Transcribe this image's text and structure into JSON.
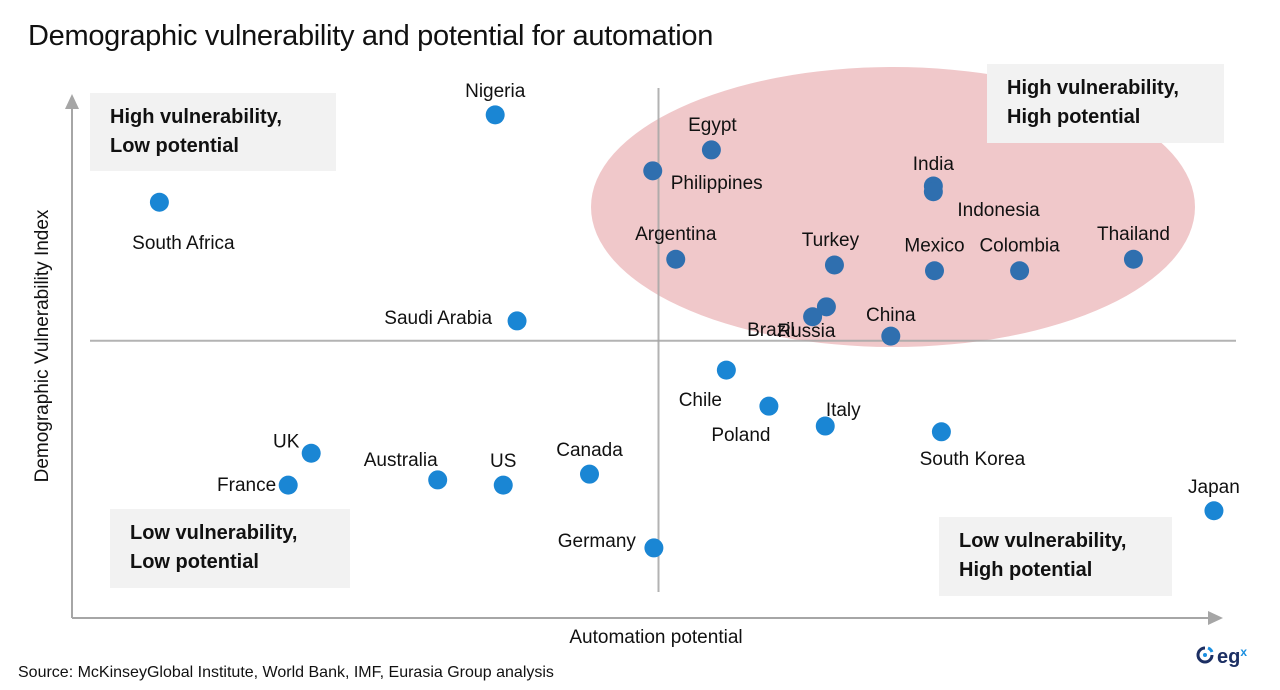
{
  "title": "Demographic vulnerability and potential for automation",
  "source": "Source: McKinseyGlobal Institute, World Bank, IMF, Eurasia Group analysis",
  "logo": {
    "text": "eg",
    "superscript": "x"
  },
  "colors": {
    "point_default": "#1a86d4",
    "point_highlight": "#2f6faf",
    "ellipse_fill": "#f0c8ca",
    "axis": "#a6a6a6",
    "quadrant_box": "#f2f2f2"
  },
  "quadrants": {
    "top_left": {
      "line1": "High vulnerability,",
      "line2": "Low potential"
    },
    "top_right": {
      "line1": "High vulnerability,",
      "line2": "High potential"
    },
    "bottom_left": {
      "line1": "Low vulnerability,",
      "line2": "Low potential"
    },
    "bottom_right": {
      "line1": "Low vulnerability,",
      "line2": "High potential"
    }
  },
  "chart_data": {
    "type": "scatter",
    "title": "Demographic vulnerability and potential for automation",
    "xlabel": "Automation potential",
    "ylabel": "Demographic Vulnerability Index",
    "xlim": [
      0,
      100
    ],
    "ylim": [
      0,
      100
    ],
    "x_ticks": [],
    "y_ticks": [],
    "grid": false,
    "x_divider": 51,
    "y_divider": 53,
    "highlight_region": "High vulnerability, High potential",
    "points": [
      {
        "name": "Nigeria",
        "x": 36.8,
        "y": 96.2,
        "highlight": false
      },
      {
        "name": "South Africa",
        "x": 7.6,
        "y": 79.5,
        "highlight": false
      },
      {
        "name": "Saudi Arabia",
        "x": 38.7,
        "y": 56.8,
        "highlight": false
      },
      {
        "name": "Egypt",
        "x": 55.6,
        "y": 89.5,
        "highlight": true
      },
      {
        "name": "Philippines",
        "x": 50.5,
        "y": 85.5,
        "highlight": true
      },
      {
        "name": "India",
        "x": 74.9,
        "y": 82.6,
        "highlight": true
      },
      {
        "name": "Indonesia",
        "x": 74.9,
        "y": 81.5,
        "highlight": true
      },
      {
        "name": "Argentina",
        "x": 52.5,
        "y": 68.6,
        "highlight": true
      },
      {
        "name": "Turkey",
        "x": 66.3,
        "y": 67.5,
        "highlight": true
      },
      {
        "name": "Mexico",
        "x": 75.0,
        "y": 66.4,
        "highlight": true
      },
      {
        "name": "Colombia",
        "x": 82.4,
        "y": 66.4,
        "highlight": true
      },
      {
        "name": "Thailand",
        "x": 92.3,
        "y": 68.6,
        "highlight": true
      },
      {
        "name": "Russia",
        "x": 65.6,
        "y": 59.5,
        "highlight": true
      },
      {
        "name": "Brazil",
        "x": 64.4,
        "y": 57.6,
        "highlight": true
      },
      {
        "name": "China",
        "x": 71.2,
        "y": 53.9,
        "highlight": true
      },
      {
        "name": "Chile",
        "x": 56.9,
        "y": 47.4,
        "highlight": false
      },
      {
        "name": "Poland",
        "x": 60.6,
        "y": 40.5,
        "highlight": false
      },
      {
        "name": "Italy",
        "x": 65.5,
        "y": 36.7,
        "highlight": false
      },
      {
        "name": "South Korea",
        "x": 75.6,
        "y": 35.6,
        "highlight": false
      },
      {
        "name": "UK",
        "x": 20.8,
        "y": 31.5,
        "highlight": false
      },
      {
        "name": "France",
        "x": 18.8,
        "y": 25.4,
        "highlight": false
      },
      {
        "name": "Australia",
        "x": 31.8,
        "y": 26.4,
        "highlight": false
      },
      {
        "name": "US",
        "x": 37.5,
        "y": 25.4,
        "highlight": false
      },
      {
        "name": "Canada",
        "x": 45.0,
        "y": 27.5,
        "highlight": false
      },
      {
        "name": "Germany",
        "x": 50.6,
        "y": 13.4,
        "highlight": false
      },
      {
        "name": "Japan",
        "x": 99.3,
        "y": 20.5,
        "highlight": false
      }
    ]
  }
}
